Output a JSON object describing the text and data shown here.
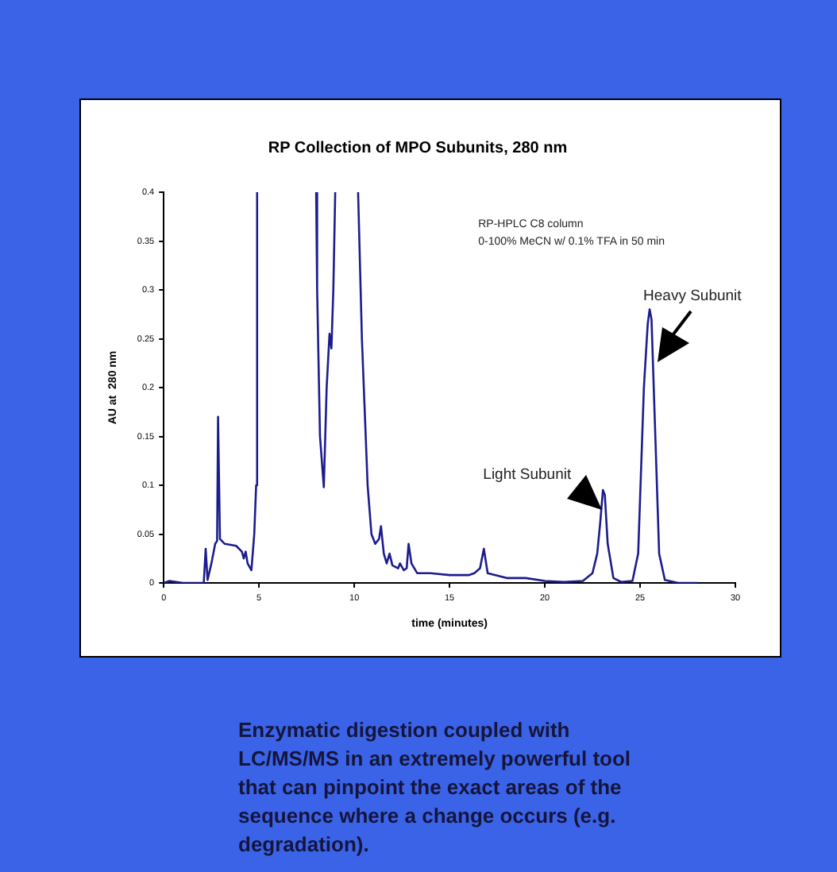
{
  "chart_data": {
    "type": "line",
    "title": "RP Collection of MPO Subunits, 280 nm",
    "xlabel": "time (minutes)",
    "ylabel": "AU at  280 nm",
    "x": [
      0,
      0.3,
      1,
      2.1,
      2.2,
      2.3,
      2.5,
      2.7,
      2.8,
      2.85,
      2.95,
      3.2,
      3.8,
      4.1,
      4.2,
      4.3,
      4.4,
      4.6,
      4.75,
      4.85,
      4.9,
      6.5,
      8.0,
      8.05,
      8.2,
      8.4,
      8.55,
      8.7,
      8.8,
      8.9,
      9.0,
      9.6,
      10.2,
      10.4,
      10.7,
      10.9,
      11.1,
      11.3,
      11.4,
      11.55,
      11.7,
      11.85,
      12.0,
      12.3,
      12.4,
      12.6,
      12.75,
      12.85,
      13.0,
      13.3,
      14,
      15,
      16,
      16.3,
      16.6,
      16.8,
      17,
      18,
      19,
      20,
      21,
      22,
      22.5,
      22.75,
      22.9,
      23.05,
      23.15,
      23.3,
      23.6,
      24,
      24.6,
      24.9,
      25.2,
      25.4,
      25.5,
      25.6,
      25.8,
      26.0,
      26.3,
      27,
      28
    ],
    "series": [
      {
        "color": "#1c1c8e",
        "values": [
          0,
          0.002,
          0,
          0,
          0.035,
          0.003,
          0.02,
          0.04,
          0.043,
          0.17,
          0.045,
          0.04,
          0.038,
          0.032,
          0.025,
          0.032,
          0.02,
          0.013,
          0.05,
          0.1,
          0.4,
          null,
          0.4,
          0.3,
          0.15,
          0.098,
          0.2,
          0.255,
          0.24,
          0.3,
          0.4,
          null,
          0.4,
          0.25,
          0.1,
          0.05,
          0.04,
          0.045,
          0.058,
          0.03,
          0.02,
          0.03,
          0.018,
          0.015,
          0.02,
          0.013,
          0.015,
          0.04,
          0.02,
          0.01,
          0.01,
          0.008,
          0.008,
          0.01,
          0.015,
          0.035,
          0.01,
          0.005,
          0.005,
          0.002,
          0.001,
          0.002,
          0.01,
          0.03,
          0.06,
          0.095,
          0.09,
          0.04,
          0.005,
          0.001,
          0.002,
          0.03,
          0.2,
          0.265,
          0.28,
          0.27,
          0.15,
          0.03,
          0.003,
          0,
          0
        ]
      }
    ],
    "xlim": [
      0,
      30
    ],
    "xticks": [
      0,
      5,
      10,
      15,
      20,
      25,
      30
    ],
    "ylim": [
      0,
      0.4
    ],
    "yticks": [
      0,
      0.05,
      0.1,
      0.15,
      0.2,
      0.25,
      0.3,
      0.35,
      0.4
    ],
    "grid": false,
    "legend": false,
    "marker": "none",
    "line_style": "solid",
    "annotations": [
      "RP-HPLC C8 column",
      "0-100% MeCN w/ 0.1% TFA in 50 min",
      {
        "text": "Light Subunit",
        "x": 23.05,
        "y": 0.095
      },
      {
        "text": "Heavy Subunit",
        "x": 25.5,
        "y": 0.28
      },
      "Enzymatic digestion coupled with LC/MS/MS in an extremely powerful tool that can pinpoint the exact areas of the sequence where a change occurs (e.g. degradation)."
    ]
  }
}
